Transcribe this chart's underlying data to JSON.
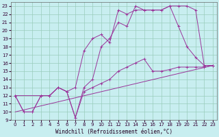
{
  "xlabel": "Windchill (Refroidissement éolien,°C)",
  "background_color": "#c8eef0",
  "grid_color": "#99ccbb",
  "line_color": "#993399",
  "xlim": [
    -0.5,
    23.5
  ],
  "ylim": [
    9,
    23.5
  ],
  "xticks": [
    0,
    1,
    2,
    3,
    4,
    5,
    6,
    7,
    8,
    9,
    10,
    11,
    12,
    13,
    14,
    15,
    16,
    17,
    18,
    19,
    20,
    21,
    22,
    23
  ],
  "yticks": [
    9,
    10,
    11,
    12,
    13,
    14,
    15,
    16,
    17,
    18,
    19,
    20,
    21,
    22,
    23
  ],
  "series": [
    {
      "x": [
        0,
        23
      ],
      "y": [
        10,
        15.7
      ],
      "marker": false
    },
    {
      "x": [
        0,
        1,
        2,
        3,
        4,
        5,
        6,
        7,
        8,
        9,
        10,
        11,
        12,
        13,
        14,
        15,
        16,
        17,
        18,
        19,
        20,
        21,
        22,
        23
      ],
      "y": [
        12,
        10,
        10,
        12,
        12,
        13,
        12.5,
        9.3,
        12.5,
        13,
        13.5,
        14,
        15,
        15.5,
        16,
        16.5,
        15,
        15,
        15.2,
        15.5,
        15.5,
        15.5,
        15.5,
        15.7
      ],
      "marker": true
    },
    {
      "x": [
        0,
        1,
        2,
        3,
        4,
        5,
        6,
        7,
        8,
        9,
        10,
        11,
        12,
        13,
        14,
        15,
        16,
        17,
        18,
        19,
        20,
        21,
        22,
        23
      ],
      "y": [
        12,
        10,
        10,
        12,
        12,
        13,
        12.5,
        9.3,
        13,
        14,
        18,
        19,
        21,
        20.5,
        23,
        22.5,
        22.5,
        22.5,
        23,
        23,
        23,
        22.5,
        15.7,
        15.7
      ],
      "marker": true
    },
    {
      "x": [
        0,
        3,
        4,
        5,
        6,
        7,
        8,
        9,
        10,
        11,
        12,
        13,
        14,
        15,
        16,
        17,
        18,
        19,
        20,
        21,
        22,
        23
      ],
      "y": [
        12,
        12,
        12,
        13,
        12.5,
        13,
        17.5,
        19,
        19.5,
        18.5,
        22.5,
        22,
        22.5,
        22.5,
        22.5,
        22.5,
        23,
        20.5,
        18,
        16.7,
        15.7,
        15.7
      ],
      "marker": true
    }
  ]
}
